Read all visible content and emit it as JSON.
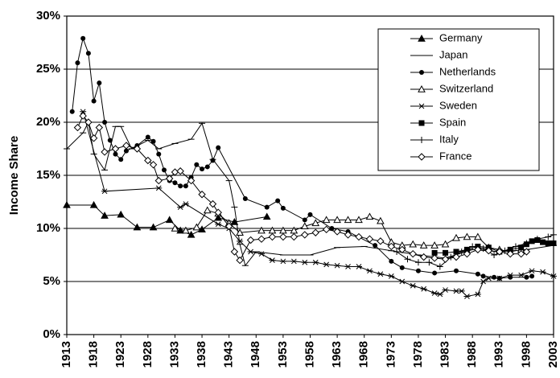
{
  "chart_data": {
    "type": "line",
    "y_label": "Income Share",
    "xlim": [
      1913,
      2003
    ],
    "xticks": [
      1913,
      1918,
      1923,
      1928,
      1933,
      1938,
      1943,
      1948,
      1953,
      1958,
      1963,
      1968,
      1973,
      1978,
      1983,
      1988,
      1993,
      1998,
      2003
    ],
    "ylim": [
      0,
      30
    ],
    "yticks": [
      {
        "value": 0,
        "label": "0%"
      },
      {
        "value": 5,
        "label": "5%"
      },
      {
        "value": 10,
        "label": "10%"
      },
      {
        "value": 15,
        "label": "15%"
      },
      {
        "value": 20,
        "label": "20%"
      },
      {
        "value": 25,
        "label": "25%"
      },
      {
        "value": 30,
        "label": "30%"
      }
    ],
    "grid": true,
    "legend": "upper right",
    "series": [
      {
        "name": "Germany",
        "color": "#000000",
        "marker": "triangle",
        "x": [
          1913,
          1918,
          1920,
          1923,
          1926,
          1929,
          1932,
          1934,
          1936,
          1938,
          1941,
          1944,
          1950
        ],
        "values": [
          12.2,
          12.2,
          11.2,
          11.3,
          10.1,
          10.1,
          10.8,
          9.8,
          9.4,
          9.9,
          11.0,
          10.6,
          11.1
        ]
      },
      {
        "name": "Japan",
        "color": "#000000",
        "marker": "dash",
        "x": [
          1913,
          1916,
          1917,
          1918,
          1920,
          1922,
          1923,
          1925,
          1928,
          1930,
          1933,
          1936,
          1938,
          1940,
          1943,
          1944,
          1945,
          1946,
          1948,
          1953,
          1958,
          1963,
          1968,
          1973,
          1978,
          1983,
          1988,
          1993,
          1998,
          2003
        ],
        "values": [
          17.5,
          19.0,
          20.0,
          17.0,
          15.5,
          19.6,
          19.6,
          17.5,
          18.3,
          17.5,
          18.0,
          18.4,
          19.9,
          16.5,
          14.5,
          12.0,
          8.5,
          6.5,
          7.8,
          7.5,
          7.5,
          8.2,
          8.3,
          7.9,
          7.5,
          7.2,
          8.0,
          7.8,
          8.0,
          8.4
        ]
      },
      {
        "name": "Netherlands",
        "color": "#000000",
        "marker": "circle",
        "x": [
          1914,
          1915,
          1916,
          1917,
          1918,
          1919,
          1920,
          1921,
          1922,
          1923,
          1924,
          1926,
          1928,
          1929,
          1930,
          1931,
          1932,
          1933,
          1934,
          1935,
          1936,
          1937,
          1938,
          1939,
          1940,
          1941,
          1946,
          1950,
          1952,
          1953,
          1957,
          1958,
          1962,
          1965,
          1970,
          1973,
          1975,
          1978,
          1981,
          1985,
          1989,
          1990,
          1992,
          1993,
          1995,
          1998,
          1999
        ],
        "values": [
          21.0,
          25.6,
          27.9,
          26.5,
          22.0,
          23.7,
          20.0,
          18.3,
          17.0,
          16.5,
          17.3,
          17.8,
          18.6,
          18.2,
          17.0,
          15.5,
          14.5,
          14.3,
          14.0,
          14.0,
          14.8,
          16.0,
          15.6,
          15.8,
          16.4,
          17.6,
          12.8,
          12.0,
          12.6,
          11.9,
          10.8,
          11.3,
          10.0,
          9.7,
          8.4,
          6.9,
          6.3,
          6.0,
          5.8,
          6.0,
          5.7,
          5.5,
          5.4,
          5.3,
          5.4,
          5.4,
          5.5
        ]
      },
      {
        "name": "Switzerland",
        "color": "#000000",
        "marker": "triangle-open",
        "x": [
          1933,
          1935,
          1937,
          1939,
          1941,
          1943,
          1945,
          1949,
          1951,
          1953,
          1955,
          1957,
          1959,
          1961,
          1963,
          1965,
          1967,
          1969,
          1971,
          1973,
          1975,
          1977,
          1979,
          1981,
          1983,
          1985,
          1987,
          1989,
          1991,
          1993,
          1995,
          1997
        ],
        "values": [
          10.0,
          9.8,
          10.1,
          11.7,
          11.4,
          10.5,
          9.6,
          9.8,
          9.8,
          9.8,
          9.8,
          10.2,
          10.5,
          10.8,
          10.8,
          10.8,
          10.8,
          11.1,
          10.7,
          8.7,
          8.4,
          8.5,
          8.4,
          8.4,
          8.5,
          9.1,
          9.2,
          9.2,
          8.2,
          8.0,
          7.8,
          8.0
        ]
      },
      {
        "name": "Sweden",
        "color": "#000000",
        "marker": "asterisk",
        "x": [
          1916,
          1920,
          1930,
          1934,
          1935,
          1941,
          1943,
          1945,
          1947,
          1949,
          1951,
          1953,
          1955,
          1957,
          1959,
          1961,
          1963,
          1965,
          1967,
          1969,
          1971,
          1973,
          1975,
          1977,
          1979,
          1981,
          1982,
          1983,
          1985,
          1986,
          1987,
          1989,
          1990,
          1991,
          1993,
          1995,
          1997,
          1999,
          2001,
          2003
        ],
        "values": [
          21.0,
          13.5,
          13.8,
          12.0,
          12.3,
          10.4,
          10.0,
          8.8,
          7.8,
          7.6,
          7.0,
          6.9,
          6.9,
          6.8,
          6.8,
          6.6,
          6.5,
          6.4,
          6.4,
          6.0,
          5.7,
          5.5,
          5.0,
          4.6,
          4.3,
          3.9,
          3.8,
          4.2,
          4.1,
          4.1,
          3.6,
          3.8,
          5.0,
          5.3,
          5.3,
          5.6,
          5.6,
          6.0,
          5.9,
          5.5
        ]
      },
      {
        "name": "Spain",
        "color": "#000000",
        "marker": "square",
        "x": [
          1981,
          1983,
          1985,
          1987,
          1989,
          1991,
          1993,
          1995,
          1997,
          1998,
          1999,
          2000,
          2001,
          2002,
          2003
        ],
        "values": [
          7.7,
          7.7,
          7.8,
          8.0,
          8.3,
          8.2,
          7.8,
          8.0,
          8.2,
          8.5,
          8.8,
          8.9,
          8.7,
          8.6,
          8.6
        ]
      },
      {
        "name": "Italy",
        "color": "#000000",
        "marker": "plus",
        "x": [
          1974,
          1976,
          1978,
          1980,
          1982,
          1984,
          1986,
          1988,
          1990,
          1992,
          1994,
          1996,
          1998,
          2000,
          2002,
          2003
        ],
        "values": [
          7.8,
          7.1,
          6.8,
          6.8,
          6.4,
          7.3,
          7.8,
          8.3,
          8.1,
          7.5,
          7.9,
          8.3,
          8.6,
          9.0,
          9.2,
          9.4
        ]
      },
      {
        "name": "France",
        "color": "#000000",
        "marker": "diamond",
        "x": [
          1915,
          1916,
          1917,
          1918,
          1919,
          1920,
          1922,
          1924,
          1926,
          1928,
          1929,
          1930,
          1932,
          1933,
          1934,
          1936,
          1938,
          1940,
          1941,
          1943,
          1944,
          1945,
          1947,
          1949,
          1951,
          1953,
          1955,
          1957,
          1959,
          1961,
          1963,
          1965,
          1967,
          1969,
          1971,
          1973,
          1975,
          1977,
          1979,
          1981,
          1983,
          1985,
          1987,
          1989,
          1991,
          1993,
          1995,
          1997,
          1998
        ],
        "values": [
          19.5,
          20.6,
          20.0,
          18.5,
          19.5,
          17.2,
          17.5,
          17.8,
          17.5,
          16.4,
          16.0,
          14.5,
          14.7,
          15.3,
          15.4,
          14.5,
          13.2,
          12.3,
          11.5,
          10.2,
          7.8,
          7.0,
          8.9,
          9.0,
          9.2,
          9.2,
          9.2,
          9.4,
          9.6,
          9.9,
          9.7,
          9.4,
          9.2,
          9.0,
          8.8,
          8.3,
          8.0,
          7.6,
          7.3,
          7.2,
          7.1,
          7.3,
          7.6,
          8.0,
          7.9,
          7.8,
          7.6,
          7.6,
          7.8
        ]
      }
    ]
  }
}
